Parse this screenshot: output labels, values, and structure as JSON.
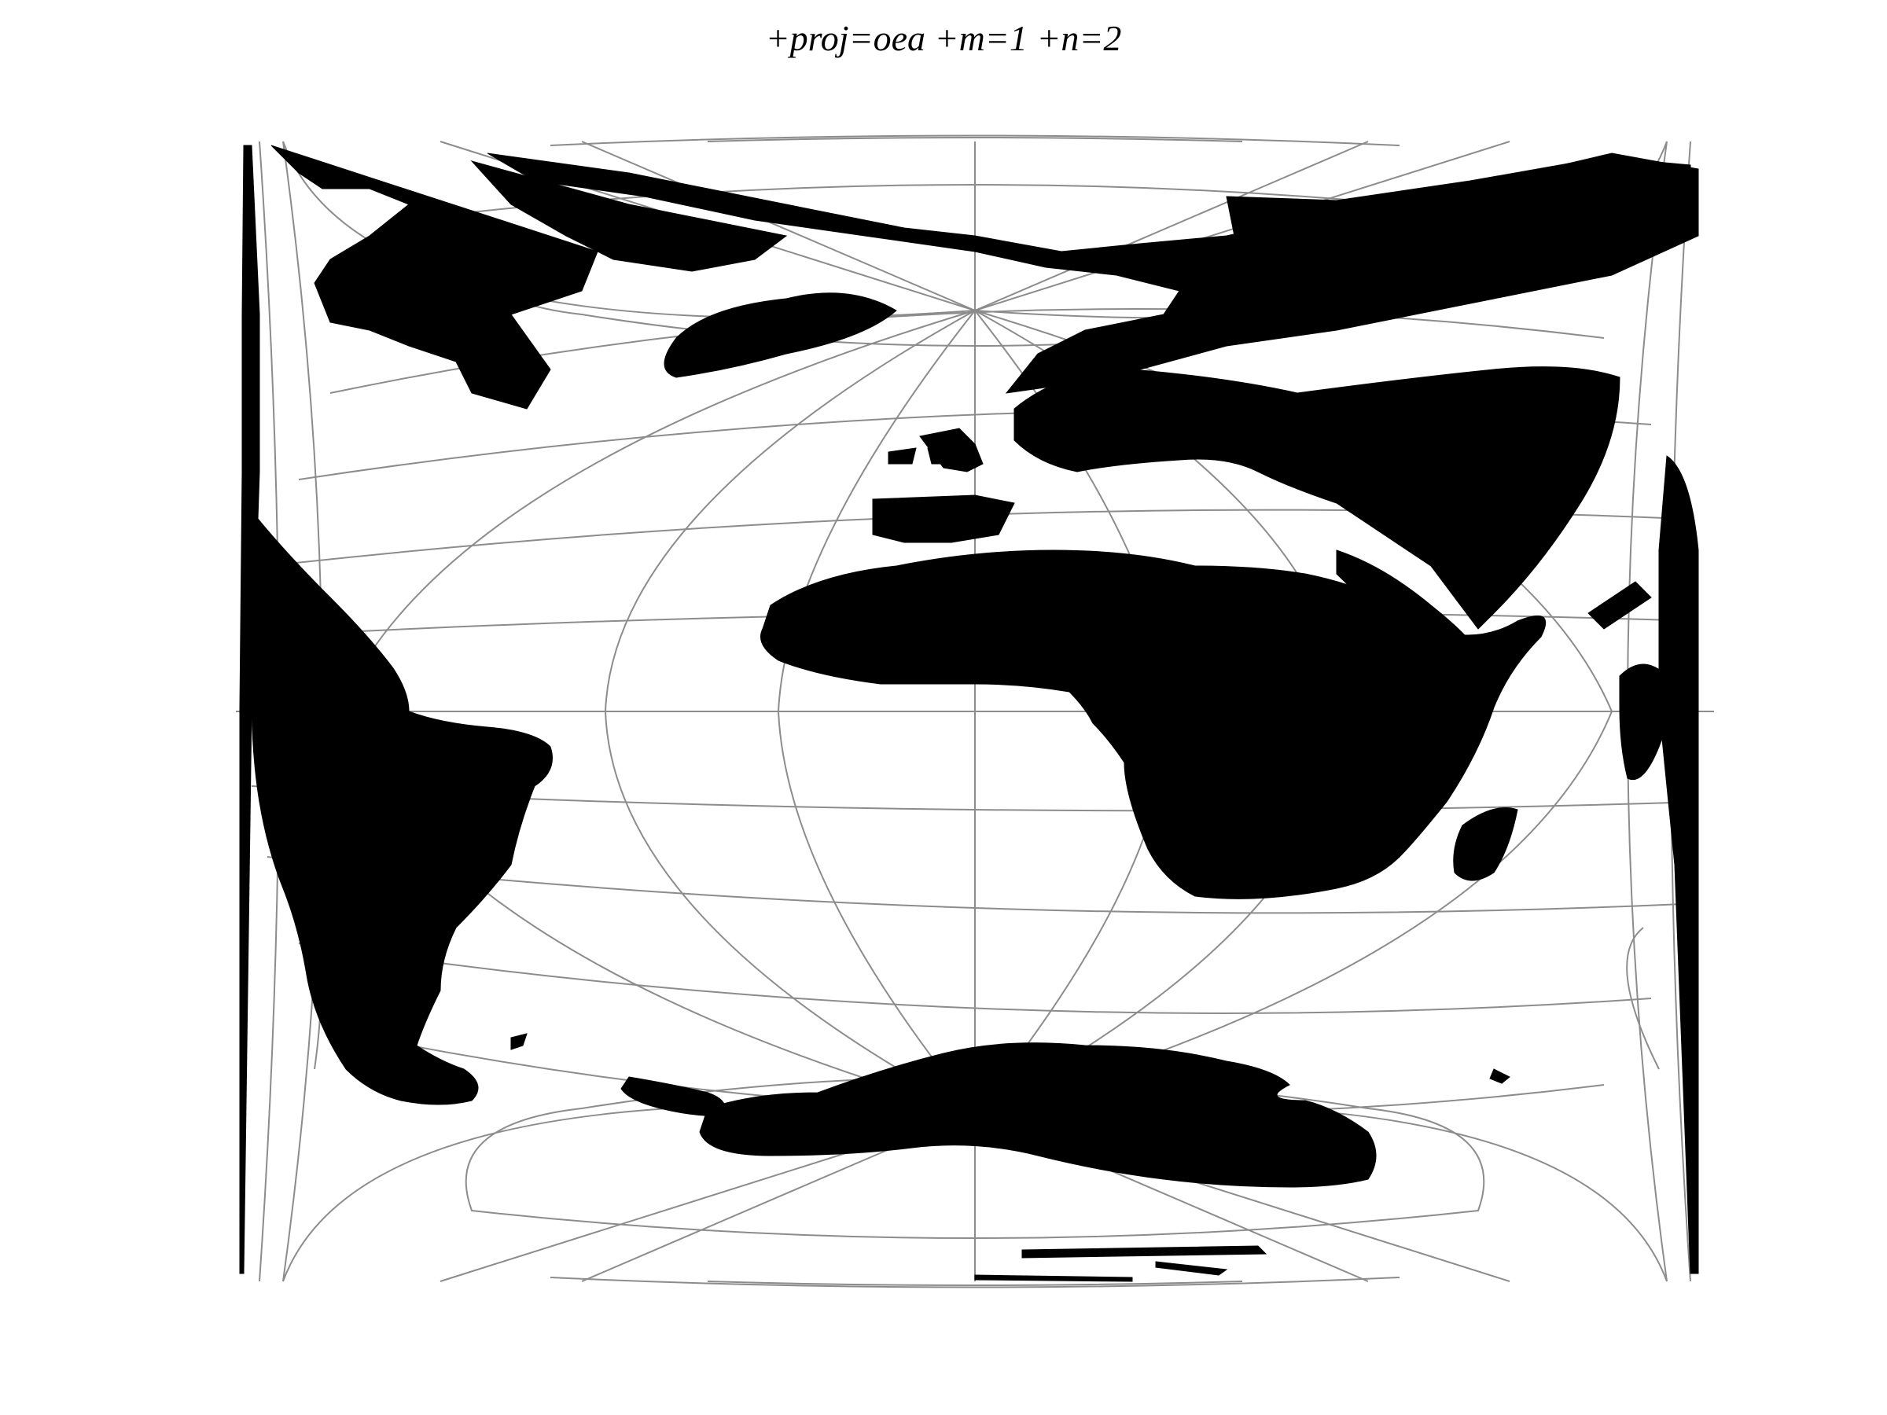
{
  "title": "+proj=oea +m=1 +n=2",
  "map": {
    "projection": "Oblated Equal Area (m=1, n=2)",
    "land_color": "#000000",
    "graticule_color": "#8c8c8c",
    "background": "#ffffff",
    "landmasses": [
      "north-america",
      "greenland",
      "europe",
      "asia",
      "africa",
      "south-america",
      "antarctica",
      "madagascar",
      "arabia"
    ]
  }
}
